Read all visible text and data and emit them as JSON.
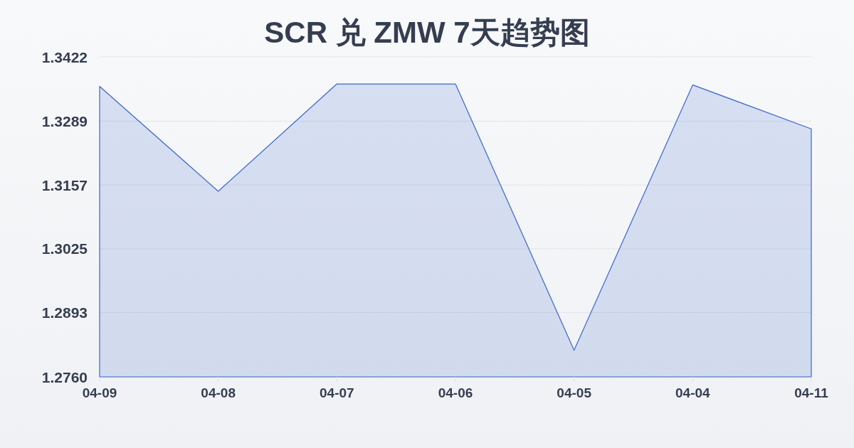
{
  "chart_data": {
    "type": "area",
    "title": "SCR 兑 ZMW 7天趋势图",
    "categories": [
      "04-09",
      "04-08",
      "04-07",
      "04-06",
      "04-05",
      "04-04",
      "04-11"
    ],
    "values": [
      1.3361,
      1.3144,
      1.3366,
      1.3366,
      1.2815,
      1.3364,
      1.3273
    ],
    "color": "#3b67c9",
    "ylim": [
      1.276,
      1.3422
    ],
    "yticks": [
      {
        "value": 1.276,
        "label": "1.2760"
      },
      1.2893,
      1.3025,
      1.3157,
      1.3289,
      1.3422
    ],
    "grid": "y"
  }
}
